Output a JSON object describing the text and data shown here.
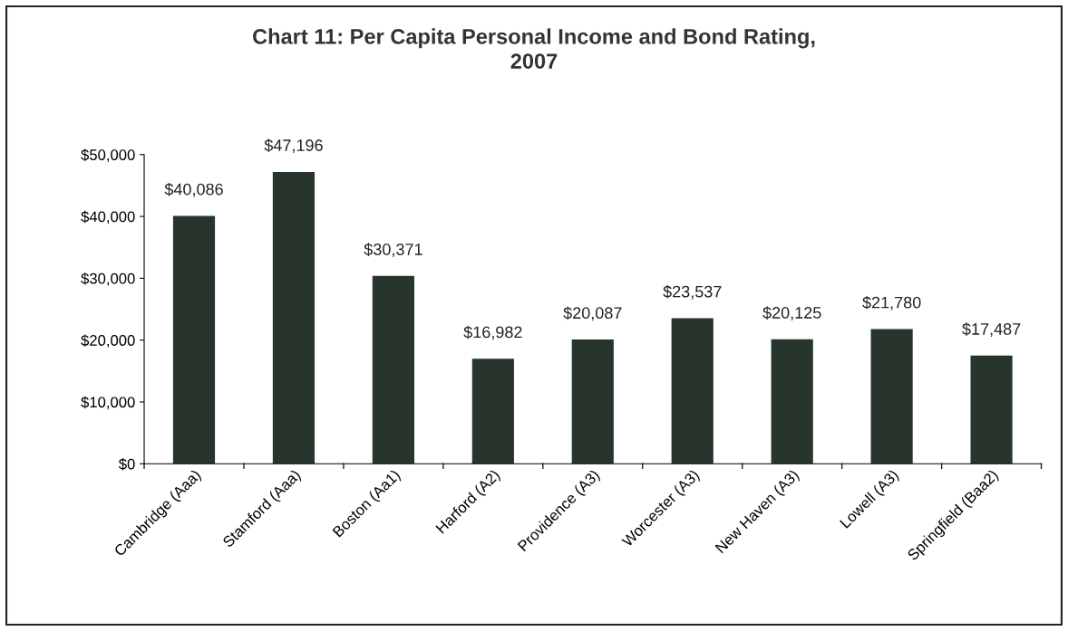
{
  "chart_data": {
    "type": "bar",
    "title": "Chart 11: Per Capita Personal Income and Bond Rating,\n2007",
    "categories": [
      "Cambridge (Aaa)",
      "Stamford (Aaa)",
      "Boston (Aa1)",
      "Harford (A2)",
      "Providence (A3)",
      "Worcester (A3)",
      "New Haven (A3)",
      "Lowell (A3)",
      "Springfield (Baa2)"
    ],
    "values": [
      40086,
      47196,
      30371,
      16982,
      20087,
      23537,
      20125,
      21780,
      17487
    ],
    "value_labels": [
      "$40,086",
      "$47,196",
      "$30,371",
      "$16,982",
      "$20,087",
      "$23,537",
      "$20,125",
      "$21,780",
      "$17,487"
    ],
    "color": "#27352c",
    "ylim": [
      0,
      50000
    ],
    "yticks": [
      {
        "value": 0,
        "label": "$0"
      },
      {
        "value": 10000,
        "label": "$10,000"
      },
      {
        "value": 20000,
        "label": "$20,000"
      },
      {
        "value": 30000,
        "label": "$30,000"
      },
      {
        "value": 40000,
        "label": "$40,000"
      },
      {
        "value": 50000,
        "label": "$50,000"
      }
    ],
    "grid": false,
    "legend": false
  }
}
